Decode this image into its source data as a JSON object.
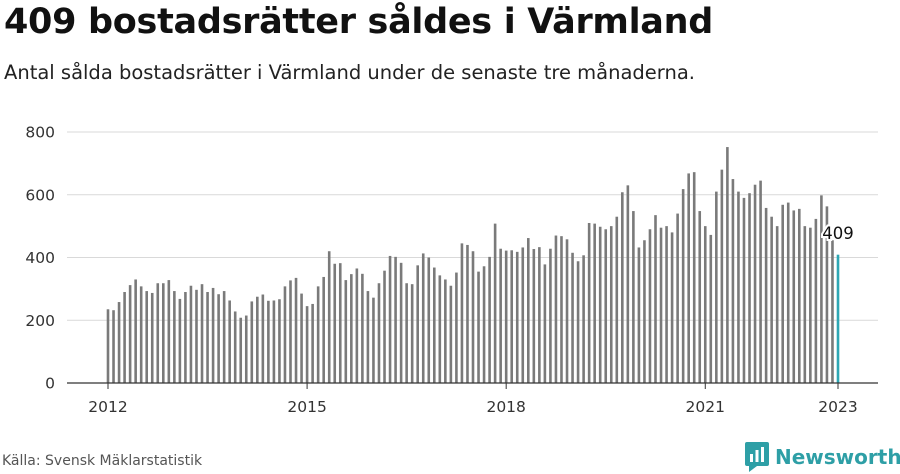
{
  "header": {
    "title": "409 bostadsrätter såldes i Värmland",
    "subtitle": "Antal sålda bostadsrätter i Värmland under de senaste tre månaderna."
  },
  "footer": {
    "source": "Källa: Svensk Mäklarstatistik",
    "brand": "Newsworthy"
  },
  "colors": {
    "bar": "#7a7a7a",
    "highlight": "#2ea7b4",
    "grid": "#d9d9d9",
    "brand": "#2e9fa6"
  },
  "chart_data": {
    "type": "bar",
    "x_tick_labels": [
      "2012",
      "2015",
      "2018",
      "2021",
      "2023"
    ],
    "y_tick_labels": [
      "0",
      "200",
      "400",
      "600",
      "800"
    ],
    "ylim": [
      0,
      800
    ],
    "grid": true,
    "highlight_label": "409",
    "series": [
      {
        "values": [
          235,
          232,
          258,
          290,
          312,
          330,
          308,
          293,
          287,
          318,
          318,
          328,
          293,
          268,
          290,
          310,
          297,
          315,
          290,
          303,
          283,
          293,
          263,
          228,
          208,
          215,
          260,
          275,
          282,
          262,
          263,
          267,
          308,
          327,
          335,
          285,
          245,
          252,
          308,
          338,
          420,
          380,
          382,
          328,
          347,
          365,
          348,
          293,
          272,
          318,
          358,
          405,
          402,
          383,
          318,
          315,
          375,
          413,
          400,
          368,
          343,
          330,
          310,
          352,
          445,
          440,
          420,
          355,
          372,
          402,
          508,
          428,
          422,
          423,
          418,
          432,
          462,
          427,
          433,
          378,
          428,
          470,
          468,
          458,
          415,
          388,
          407,
          510,
          508,
          498,
          490,
          500,
          530,
          608,
          630,
          548,
          432,
          455,
          490,
          535,
          495,
          500,
          480,
          540,
          618,
          668,
          672,
          548,
          500,
          472,
          610,
          680,
          752,
          650,
          610,
          590,
          605,
          632,
          645,
          558,
          530,
          500,
          568,
          575,
          550,
          555,
          500,
          495,
          523,
          598,
          563,
          455,
          409
        ]
      }
    ]
  }
}
